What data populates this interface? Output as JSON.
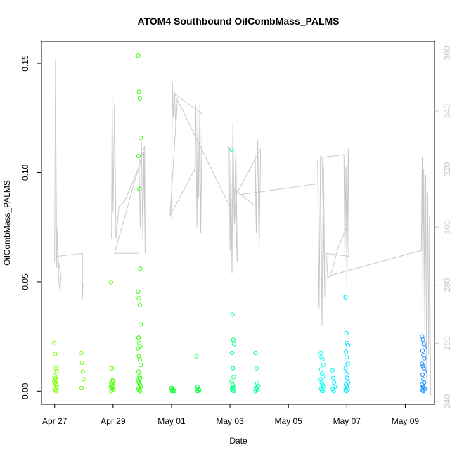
{
  "chart_data": {
    "type": "scatter",
    "title": "ATOM4 Southbound OilCombMass_PALMS",
    "xlabel": "Date",
    "ylabel": "OilCombMass_PALMS",
    "x_tick_labels": [
      "Apr 27",
      "Apr 29",
      "May 01",
      "May 03",
      "May 05",
      "May 07",
      "May 09"
    ],
    "x_tick_days": [
      0,
      2,
      4,
      6,
      8,
      10,
      12
    ],
    "xlim_days": [
      -0.45,
      13.0
    ],
    "y_ticks": [
      0.0,
      0.05,
      0.1,
      0.15
    ],
    "y_tick_labels": [
      "0.00",
      "0.05",
      "0.10",
      "0.15"
    ],
    "ylim": [
      -0.006,
      0.16
    ],
    "y2_ticks": [
      240,
      260,
      280,
      300,
      320,
      340,
      360
    ],
    "y2_tick_labels": [
      "240",
      "260",
      "280",
      "300",
      "320",
      "340",
      "360"
    ],
    "y2lim": [
      239,
      364
    ],
    "colors": {
      "axis": "#000000",
      "secondary_axis": "#c8c8c8",
      "line": "#c8c8c8"
    },
    "scatter_groups": [
      {
        "day": 0.03,
        "color": "#7fff00",
        "values": [
          0.022,
          0.017,
          0.0105,
          0.009,
          0.007,
          0.006,
          0.005,
          0.0045,
          0.004,
          0.003,
          0.002,
          0.001,
          0.0005,
          0.0
        ]
      },
      {
        "day": 0.95,
        "color": "#6eff00",
        "values": [
          0.0175,
          0.013,
          0.009,
          0.0055,
          0.0015
        ]
      },
      {
        "day": 1.97,
        "color": "#52ff00",
        "values": [
          0.0498,
          0.0105,
          0.005,
          0.0045,
          0.0035,
          0.003,
          0.0025,
          0.002,
          0.0015,
          0.001,
          0.0005,
          0.0
        ]
      },
      {
        "day": 2.9,
        "color": "#30ff00",
        "values": [
          0.1535,
          0.137,
          0.134,
          0.116,
          0.1075,
          0.0925,
          0.056,
          0.0455,
          0.0425,
          0.0395,
          0.0305,
          0.0245,
          0.022,
          0.0205,
          0.0195,
          0.016,
          0.0145,
          0.012,
          0.009,
          0.007,
          0.006,
          0.005,
          0.004,
          0.003,
          0.002,
          0.001,
          0.0005,
          0.0
        ]
      },
      {
        "day": 4.05,
        "color": "#00ff22",
        "values": [
          0.0015,
          0.0008,
          0.0004,
          0.0001,
          0.0
        ]
      },
      {
        "day": 4.9,
        "color": "#00ff3a",
        "values": [
          0.016,
          0.002,
          0.001,
          0.0005,
          0.0002,
          0.0
        ]
      },
      {
        "day": 6.1,
        "color": "#00ff80",
        "values": [
          0.1105,
          0.035,
          0.0235,
          0.0215,
          0.0175,
          0.0105,
          0.0065,
          0.0045,
          0.003,
          0.002,
          0.0015,
          0.001,
          0.0005,
          0.0
        ]
      },
      {
        "day": 6.92,
        "color": "#00ff99",
        "values": [
          0.0175,
          0.0105,
          0.0035,
          0.0025,
          0.0015,
          0.001,
          0.0005,
          0.0
        ]
      },
      {
        "day": 9.15,
        "color": "#00fff0",
        "values": [
          0.0175,
          0.0155,
          0.0145,
          0.012,
          0.01,
          0.008,
          0.0065,
          0.0055,
          0.004,
          0.003,
          0.002,
          0.001,
          0.0005,
          0.0
        ]
      },
      {
        "day": 9.55,
        "color": "#00f4ff",
        "values": [
          0.0095,
          0.006,
          0.004,
          0.002,
          0.001,
          0.0
        ]
      },
      {
        "day": 10.0,
        "color": "#00e2ff",
        "values": [
          0.043,
          0.0265,
          0.022,
          0.021,
          0.018,
          0.0155,
          0.0125,
          0.0105,
          0.008,
          0.006,
          0.004,
          0.003,
          0.002,
          0.001,
          0.0005,
          0.0
        ]
      },
      {
        "day": 12.62,
        "color": "#1e90ff",
        "values": [
          0.025,
          0.0235,
          0.0215,
          0.02,
          0.0185,
          0.0165,
          0.015,
          0.0125,
          0.0115,
          0.0105,
          0.009,
          0.0075,
          0.0055,
          0.004,
          0.003,
          0.002,
          0.0015,
          0.001,
          0.0005,
          0.0
        ]
      }
    ],
    "secondary_line": {
      "name": "altitude trace (right axis)",
      "segments": [
        [
          [
            0.0,
            288
          ],
          [
            0.03,
            358
          ],
          [
            0.07,
            286
          ],
          [
            0.1,
            300
          ],
          [
            0.14,
            282
          ],
          [
            0.18,
            278
          ],
          [
            0.22,
            283
          ],
          [
            0.1,
            290
          ],
          [
            0.95,
            291
          ],
          [
            0.95,
            275
          ],
          [
            0.97,
            281
          ]
        ],
        [
          [
            1.95,
            296
          ],
          [
            1.97,
            345
          ],
          [
            2.0,
            305
          ],
          [
            2.05,
            342
          ],
          [
            2.1,
            296
          ],
          [
            2.2,
            307
          ],
          [
            2.4,
            309
          ],
          [
            2.9,
            321
          ],
          [
            2.88,
            326
          ],
          [
            2.93,
            300
          ],
          [
            2.97,
            330
          ],
          [
            3.02,
            295
          ],
          [
            3.05,
            326
          ],
          [
            3.1,
            291
          ],
          [
            3.08,
            328
          ],
          [
            2.05,
            291
          ],
          [
            2.88,
            291
          ]
        ],
        [
          [
            4.0,
            303
          ],
          [
            4.03,
            350
          ],
          [
            4.06,
            338
          ],
          [
            4.1,
            347
          ],
          [
            4.15,
            334
          ],
          [
            4.2,
            344
          ],
          [
            3.95,
            304
          ],
          [
            4.8,
            320
          ],
          [
            4.83,
            342
          ],
          [
            4.87,
            300
          ],
          [
            4.9,
            340
          ],
          [
            4.93,
            310
          ],
          [
            4.97,
            343
          ],
          [
            5.0,
            298
          ],
          [
            5.05,
            339
          ],
          [
            4.1,
            346
          ],
          [
            6.0,
            307
          ]
        ],
        [
          [
            5.97,
            328
          ],
          [
            6.0,
            292
          ],
          [
            6.03,
            323
          ],
          [
            6.07,
            284
          ],
          [
            6.1,
            336
          ],
          [
            6.15,
            301
          ],
          [
            6.2,
            328
          ],
          [
            6.25,
            288
          ],
          [
            6.15,
            313
          ],
          [
            6.9,
            307
          ],
          [
            6.85,
            329
          ],
          [
            6.9,
            298
          ],
          [
            6.95,
            330
          ],
          [
            7.0,
            292
          ],
          [
            7.05,
            327
          ],
          [
            6.2,
            311
          ],
          [
            9.0,
            315
          ]
        ],
        [
          [
            9.0,
            323
          ],
          [
            9.05,
            272
          ],
          [
            9.1,
            325
          ],
          [
            9.15,
            266
          ],
          [
            9.2,
            321
          ],
          [
            9.25,
            276
          ],
          [
            9.15,
            324
          ],
          [
            9.9,
            325
          ],
          [
            9.93,
            290
          ],
          [
            9.97,
            321
          ],
          [
            10.0,
            280
          ],
          [
            10.05,
            327
          ],
          [
            10.07,
            290
          ],
          [
            9.3,
            291
          ],
          [
            9.35,
            282
          ],
          [
            9.5,
            285
          ],
          [
            9.7,
            293
          ],
          [
            10.0,
            300
          ]
        ],
        [
          [
            9.3,
            283
          ],
          [
            12.55,
            292
          ],
          [
            12.58,
            324
          ],
          [
            12.6,
            270
          ],
          [
            12.63,
            320
          ],
          [
            12.67,
            265
          ],
          [
            12.7,
            318
          ],
          [
            12.73,
            248
          ],
          [
            12.77,
            312
          ],
          [
            12.8,
            256
          ],
          [
            12.83,
            304
          ],
          [
            12.87,
            242
          ]
        ]
      ]
    }
  }
}
